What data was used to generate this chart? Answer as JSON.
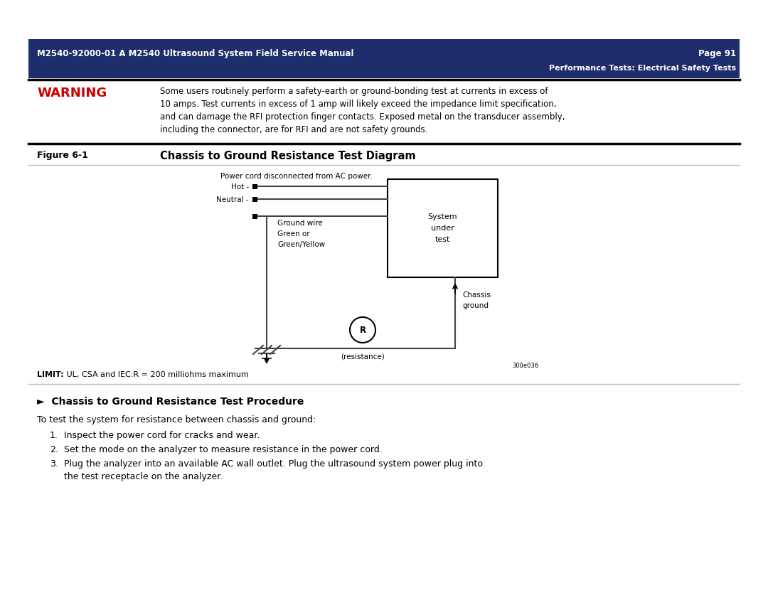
{
  "bg_color": "#ffffff",
  "header_bg": "#1e2d6b",
  "header_text_left": "M2540-92000-01 A M2540 Ultrasound System Field Service Manual",
  "header_text_right": "Page 91",
  "header_subtext": "Performance Tests: Electrical Safety Tests",
  "warning_label": "WARNING",
  "warning_color": "#cc0000",
  "warning_text_lines": [
    "Some users routinely perform a safety-earth or ground-bonding test at currents in excess of",
    "10 amps. Test currents in excess of 1 amp will likely exceed the impedance limit specification,",
    "and can damage the RFI protection finger contacts. Exposed metal on the transducer assembly,",
    "including the connector, are for RFI and are not safety grounds."
  ],
  "figure_label": "Figure 6-1",
  "figure_title": "Chassis to Ground Resistance Test Diagram",
  "limit_bold": "LIMIT:",
  "limit_rest": " UL, CSA and IEC:R = 200 milliohms maximum",
  "procedure_title": "►  Chassis to Ground Resistance Test Procedure",
  "procedure_intro": "To test the system for resistance between chassis and ground:",
  "steps": [
    "Inspect the power cord for cracks and wear.",
    "Set the mode on the analyzer to measure resistance in the power cord.",
    "Plug the analyzer into an available AC wall outlet. Plug the ultrasound system power plug into\nthe test receptacle on the analyzer."
  ],
  "diag_power_cord_label": "Power cord disconnected from AC power.",
  "diag_hot": "Hot -",
  "diag_neutral": "Neutral -",
  "diag_ground_wire": "Ground wire\nGreen or\nGreen/Yellow",
  "diag_system_under_test": "System\nunder\ntest",
  "diag_chassis_ground": "Chassis\nground",
  "diag_resistance": "(resistance)",
  "diag_R_label": "R",
  "diag_figure_code": "300e036"
}
